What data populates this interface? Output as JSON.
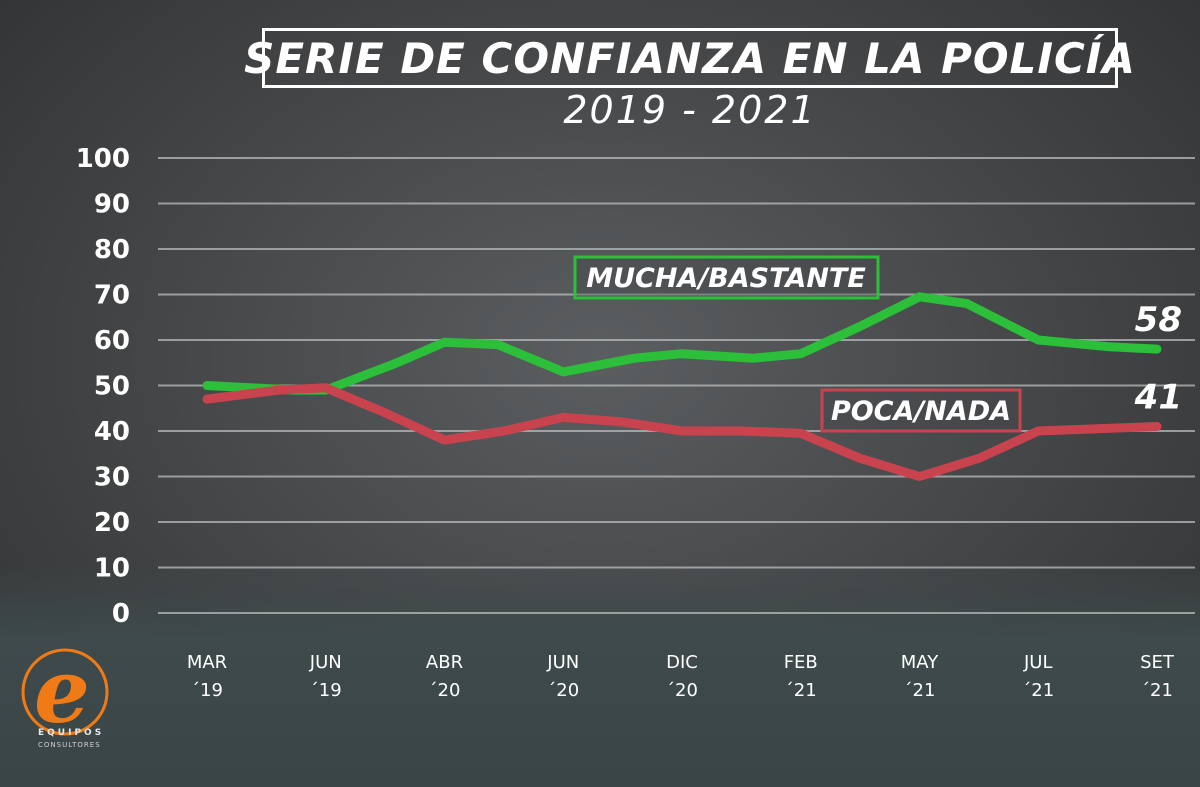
{
  "colors": {
    "green": "#2bbf3a",
    "red": "#c9434f",
    "grid": "#b9bcbd",
    "logo_orange": "#f07b16"
  },
  "chart_data": {
    "type": "line",
    "title": "SERIE DE CONFIANZA EN LA POLICÍA",
    "subtitle": "2019 - 2021",
    "ylim": [
      0,
      100
    ],
    "y_ticks": [
      "0",
      "10",
      "20",
      "30",
      "40",
      "50",
      "60",
      "70",
      "80",
      "90",
      "100"
    ],
    "grid": true,
    "categories": [
      {
        "month": "MAR",
        "year": "´19"
      },
      {
        "month": "JUN",
        "year": "´19"
      },
      {
        "month": "ABR",
        "year": "´20"
      },
      {
        "month": "JUN",
        "year": "´20"
      },
      {
        "month": "DIC",
        "year": "´20"
      },
      {
        "month": "FEB",
        "year": "´21"
      },
      {
        "month": "MAY",
        "year": "´21"
      },
      {
        "month": "JUL",
        "year": "´21"
      },
      {
        "month": "SET",
        "year": "´21"
      }
    ],
    "series": [
      {
        "name": "MUCHA/BASTANTE",
        "color": "#2bbf3a",
        "end_label": "58",
        "x": [
          0,
          0.75,
          1,
          1.6,
          2,
          2.45,
          3,
          3.6,
          4,
          4.6,
          5,
          5.5,
          6,
          6.4,
          7,
          7.6,
          8
        ],
        "values": [
          50,
          49,
          49,
          55,
          59.5,
          59,
          53,
          56,
          57,
          56,
          57,
          63,
          69.5,
          68,
          60,
          58.5,
          58
        ]
      },
      {
        "name": "POCA/NADA",
        "color": "#c9434f",
        "end_label": "41",
        "x": [
          0,
          0.6,
          1,
          1.5,
          2,
          2.5,
          3,
          3.5,
          4,
          4.5,
          5,
          5.5,
          6,
          6.5,
          7,
          7.5,
          8
        ],
        "values": [
          47,
          49,
          49.5,
          44,
          38,
          40,
          43,
          42,
          40,
          40,
          39.5,
          34,
          30,
          34,
          40,
          40.5,
          41
        ]
      }
    ]
  },
  "logo": {
    "letter": "e",
    "brand": "EQUIPOS",
    "sub": "CONSULTORES"
  }
}
